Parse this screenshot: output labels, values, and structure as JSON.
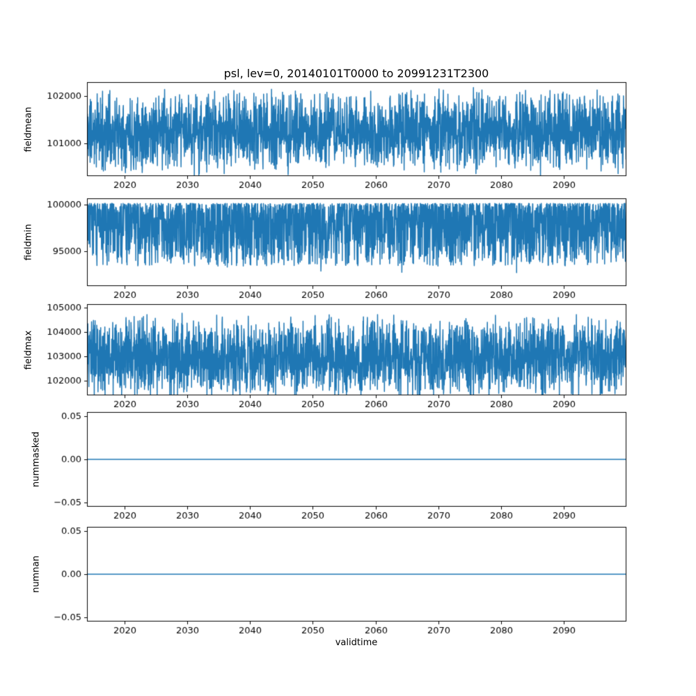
{
  "title": "psl, lev=0, 20140101T0000 to 20991231T2300",
  "xlabel": "validtime",
  "accent_color": "#1f77b4",
  "chart_data": {
    "type": "line",
    "x_range": [
      2014,
      2100
    ],
    "x_tick_values": [
      2020,
      2030,
      2040,
      2050,
      2060,
      2070,
      2080,
      2090
    ],
    "x_tick_labels": [
      "2020",
      "2030",
      "2040",
      "2050",
      "2060",
      "2070",
      "2080",
      "2090"
    ],
    "subplots": [
      {
        "ylabel": "fieldmean",
        "ylim": [
          100300,
          102300
        ],
        "ytick_values": [
          101000,
          102000
        ],
        "ytick_labels": [
          "101000",
          "102000"
        ],
        "series": {
          "name": "fieldmean",
          "kind": "noise-triangular",
          "mean": 101250,
          "half_width": 950,
          "n": 2600,
          "seed": 11
        }
      },
      {
        "ylabel": "fieldmin",
        "ylim": [
          91200,
          100700
        ],
        "ytick_values": [
          95000,
          100000
        ],
        "ytick_labels": [
          "95000",
          "100000"
        ],
        "series": {
          "name": "fieldmin",
          "kind": "noise-top-heavy",
          "top": 100150,
          "depth": 6800,
          "power": 1.8,
          "spike_p": 0.012,
          "spike_extra": 1800,
          "n": 2600,
          "seed": 22
        }
      },
      {
        "ylabel": "fieldmax",
        "ylim": [
          101400,
          105150
        ],
        "ytick_values": [
          102000,
          103000,
          104000,
          105000
        ],
        "ytick_labels": [
          "102000",
          "103000",
          "104000",
          "105000"
        ],
        "series": {
          "name": "fieldmax",
          "kind": "noise-triangular",
          "mean": 102950,
          "half_width": 1850,
          "n": 2600,
          "seed": 33
        }
      },
      {
        "ylabel": "nummasked",
        "ylim": [
          -0.055,
          0.055
        ],
        "ytick_values": [
          -0.05,
          0,
          0.05
        ],
        "ytick_labels": [
          "−0.05",
          "0.00",
          "0.05"
        ],
        "series": {
          "name": "nummasked",
          "kind": "constant",
          "value": 0
        }
      },
      {
        "ylabel": "numnan",
        "ylim": [
          -0.055,
          0.055
        ],
        "ytick_values": [
          -0.05,
          0,
          0.05
        ],
        "ytick_labels": [
          "−0.05",
          "0.00",
          "0.05"
        ],
        "series": {
          "name": "numnan",
          "kind": "constant",
          "value": 0
        }
      }
    ]
  }
}
